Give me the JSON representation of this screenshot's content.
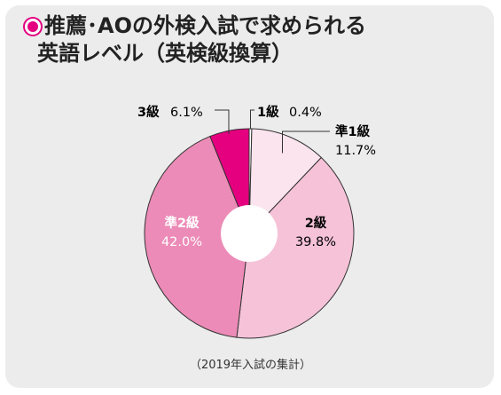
{
  "title": {
    "line1": "推薦･AOの外検入試で求められる",
    "line2": "英語レベル（英検級換算）"
  },
  "chart_data": {
    "type": "pie",
    "variant": "donut",
    "title": "推薦･AOの外検入試で求められる英語レベル（英検級換算）",
    "slices": [
      {
        "label": "1級",
        "value": 0.4,
        "display": "0.4%",
        "color": "#ffffff"
      },
      {
        "label": "準1級",
        "value": 11.7,
        "display": "11.7%",
        "color": "#fbe4ee"
      },
      {
        "label": "2級",
        "value": 39.8,
        "display": "39.8%",
        "color": "#f5c2d8"
      },
      {
        "label": "準2級",
        "value": 42.0,
        "display": "42.0%",
        "color": "#ec8bb7"
      },
      {
        "label": "3級",
        "value": 6.1,
        "display": "6.1%",
        "color": "#e4007f"
      }
    ]
  },
  "footnote": "（2019年入試の集計）"
}
